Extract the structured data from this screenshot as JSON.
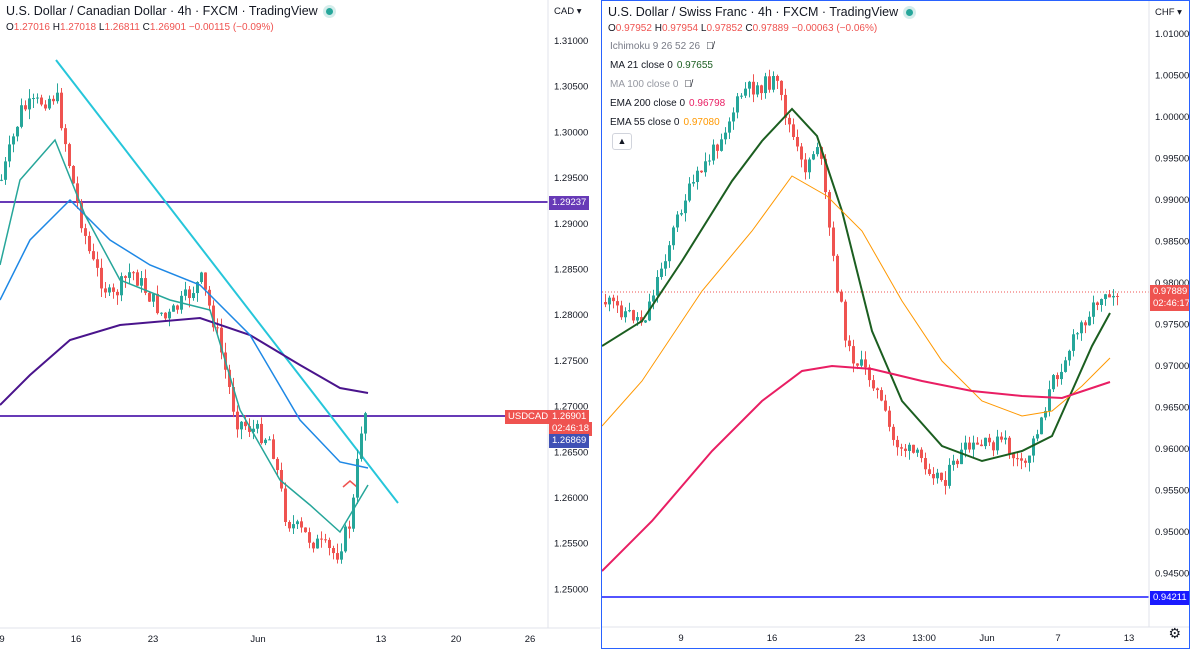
{
  "left": {
    "title": "U.S. Dollar / Canadian Dollar · 4h · FXCM · TradingView",
    "ohlc": {
      "o_label": "O",
      "o": "1.27016",
      "h_label": "H",
      "h": "1.27018",
      "l_label": "L",
      "l": "1.26811",
      "c_label": "C",
      "c": "1.26901",
      "change": "−0.00115 (−0.09%)"
    },
    "currency": "CAD",
    "y_ticks": [
      "1.31000",
      "1.30500",
      "1.30000",
      "1.29500",
      "1.29000",
      "1.28500",
      "1.28000",
      "1.27500",
      "1.27000",
      "1.26500",
      "1.26000",
      "1.25500",
      "1.25000"
    ],
    "x_ticks": [
      "9",
      "16",
      "23",
      "Jun",
      "13",
      "20",
      "26"
    ],
    "hline_label": "1.29237",
    "symbol_tag": "USDCAD",
    "price_tag": "1.26901",
    "timer": "02:46:18",
    "ma_tag": "1.26869",
    "colors": {
      "trendline": "#26c6da",
      "hline": "#673ab7",
      "ma200": "#4a148c",
      "up": "#26a69a",
      "down": "#ef5350",
      "ma_blue": "#1e88e5",
      "ma_teal": "#26a69a"
    }
  },
  "right": {
    "title": "U.S. Dollar / Swiss Franc · 4h · FXCM · TradingView",
    "ohlc": {
      "o_label": "O",
      "o": "0.97952",
      "h_label": "H",
      "h": "0.97954",
      "l_label": "L",
      "l": "0.97852",
      "c_label": "C",
      "c": "0.97889",
      "change": "−0.00063 (−0.06%)"
    },
    "currency": "CHF",
    "indicators": [
      {
        "name": "Ichimoku 9 26 52 26",
        "value": "",
        "color": "#787b86",
        "hidden": true
      },
      {
        "name": "MA 21 close 0",
        "value": "0.97655",
        "color": "#1b5e20",
        "hidden": false
      },
      {
        "name": "MA 100 close 0",
        "value": "",
        "color": "#9598a1",
        "hidden": true
      },
      {
        "name": "EMA 200 close 0",
        "value": "0.96798",
        "color": "#e91e63",
        "hidden": false
      },
      {
        "name": "EMA 55 close 0",
        "value": "0.97080",
        "color": "#ff9800",
        "hidden": false
      }
    ],
    "y_ticks": [
      "1.01000",
      "1.00500",
      "1.00000",
      "0.99500",
      "0.99000",
      "0.98500",
      "0.98000",
      "0.97500",
      "0.97000",
      "0.96500",
      "0.96000",
      "0.95500",
      "0.95000",
      "0.94500"
    ],
    "x_ticks": [
      "9",
      "16",
      "23",
      "13:00",
      "Jun",
      "7",
      "13"
    ],
    "price_tag": "0.97889",
    "timer": "02:46:17",
    "hline_label": "0.94211",
    "colors": {
      "ma21": "#1b5e20",
      "ema55": "#ff9800",
      "ema200": "#e91e63",
      "hline": "#1a1aff"
    }
  }
}
